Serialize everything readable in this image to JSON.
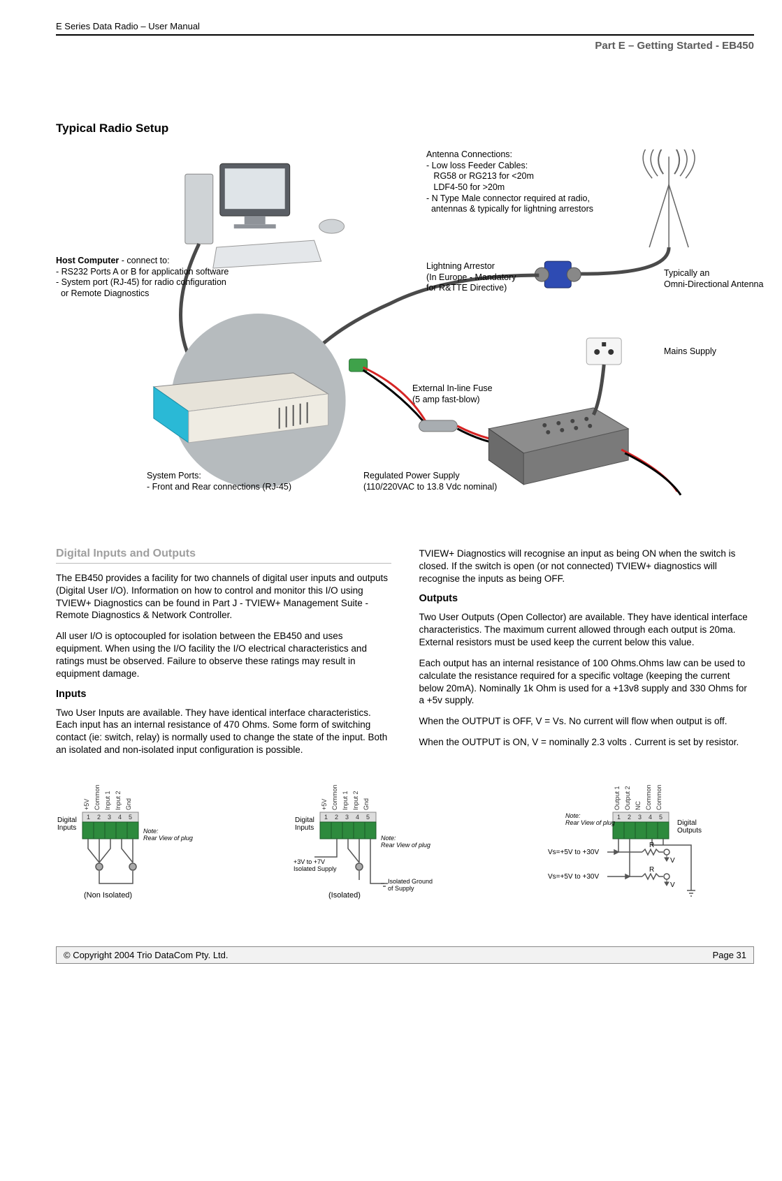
{
  "header": {
    "manual_title": "E Series Data Radio – User Manual",
    "part_label": "Part E –  Getting Started - EB450"
  },
  "section1": {
    "heading": "Typical Radio Setup",
    "annotations": {
      "antenna_title": "Antenna Connections:",
      "antenna_l1": "- Low loss Feeder Cables:",
      "antenna_l2": "   RG58 or RG213 for <20m",
      "antenna_l3": "   LDF4-50 for >20m",
      "antenna_l4": "- N Type Male connector required at radio,",
      "antenna_l5": "  antennas & typically for lightning arrestors",
      "host_title": "Host Computer",
      "host_suffix": " - connect to:",
      "host_l1": "- RS232 Ports A or B for application software",
      "host_l2": "- System port (RJ-45) for radio configuration",
      "host_l3": "  or Remote Diagnostics",
      "lightning_l1": "Lightning Arrestor",
      "lightning_l2": "(In Europe - Mandatory",
      "lightning_l3": "for R&TTE Directive)",
      "omni_l1": "Typically an",
      "omni_l2": "Omni-Directional Antenna",
      "mains": "Mains Supply",
      "fuse_l1": "External In-line Fuse",
      "fuse_l2": "(5 amp fast-blow)",
      "sysports_l1": "System Ports:",
      "sysports_l2": "- Front and Rear connections (RJ-45)",
      "psu_l1": "Regulated Power Supply",
      "psu_l2": "(110/220VAC to 13.8 Vdc nominal)"
    },
    "colors": {
      "circle_bg": "#b6bbbe",
      "radio_face": "#e7e3d9",
      "radio_panel": "#2ab9d6",
      "cable": "#4a4a4a",
      "red_wire": "#d62424",
      "black_wire": "#000",
      "green_conn": "#3fa24a",
      "psu_body": "#7d7d7d",
      "arrestor": "#2e4bb3",
      "computer": "#8f9399"
    }
  },
  "section2": {
    "heading": "Digital Inputs and Outputs",
    "p1": "The EB450 provides a facility for two channels of digital user inputs and outputs (Digital User I/O). Information on how to control and monitor this I/O using TVIEW+ Diagnostics can be found in Part J - TVIEW+ Management Suite -  Remote Diagnostics & Network Controller.",
    "p2": "All user I/O is optocoupled for isolation between the EB450 and uses equipment. When using the I/O facility the I/O electrical characteristics and ratings must be observed. Failure to observe these ratings may result in equipment damage.",
    "inputs_h": "Inputs",
    "p3": "Two User Inputs are available. They have identical interface characteristics. Each input has an internal resistance of 470 Ohms. Some form of switching contact (ie: switch, relay) is normally used to change the state of the input. Both an isolated and non-isolated input configuration is possible.",
    "p_r1": "TVIEW+ Diagnostics will recognise an input as being ON when the switch is closed. If the switch is open (or not connected) TVIEW+ diagnostics will recognise the inputs as being OFF.",
    "outputs_h": "Outputs",
    "p_r2": "Two User Outputs (Open Collector) are available. They have identical interface characteristics. The maximum current allowed through each output is 20ma. External resistors must be used keep the current below this value.",
    "p_r3": "Each output has an internal resistance of 100 Ohms.Ohms law can be used to calculate the resistance required for a specific voltage (keeping the current below 20mA). Nominally 1k Ohm is used for a +13v8 supply and 330 Ohms for a +5v supply.",
    "p_r4": "When the OUTPUT is OFF, V = Vs. No current will flow when output is off.",
    "p_r5": "When the OUTPUT is ON, V = nominally 2.3 volts . Current is set by resistor."
  },
  "terminal_diagrams": {
    "colors": {
      "block": "#2d8a3d",
      "wire": "#555"
    },
    "pin_labels_in": [
      "+5V",
      "Common",
      "Input 1",
      "Input 2",
      "Gnd"
    ],
    "pin_numbers": [
      "1",
      "2",
      "3",
      "4",
      "5"
    ],
    "pin_labels_out": [
      "Output 1",
      "Output 2",
      "NC",
      "Common",
      "Common"
    ],
    "digital_inputs": "Digital\nInputs",
    "digital_outputs": "Digital\nOutputs",
    "note": "Note:\nRear View of plug",
    "non_isolated": "(Non Isolated)",
    "isolated": "(Isolated)",
    "iso_supply": "+3V to +7V\nIsolated Supply",
    "iso_ground": "Isolated Ground\nof Supply",
    "vs_label": "Vs=+5V to +30V",
    "r_label": "R",
    "v_label": "V"
  },
  "footer": {
    "copyright": "© Copyright 2004 Trio DataCom Pty. Ltd.",
    "page": "Page 31"
  }
}
